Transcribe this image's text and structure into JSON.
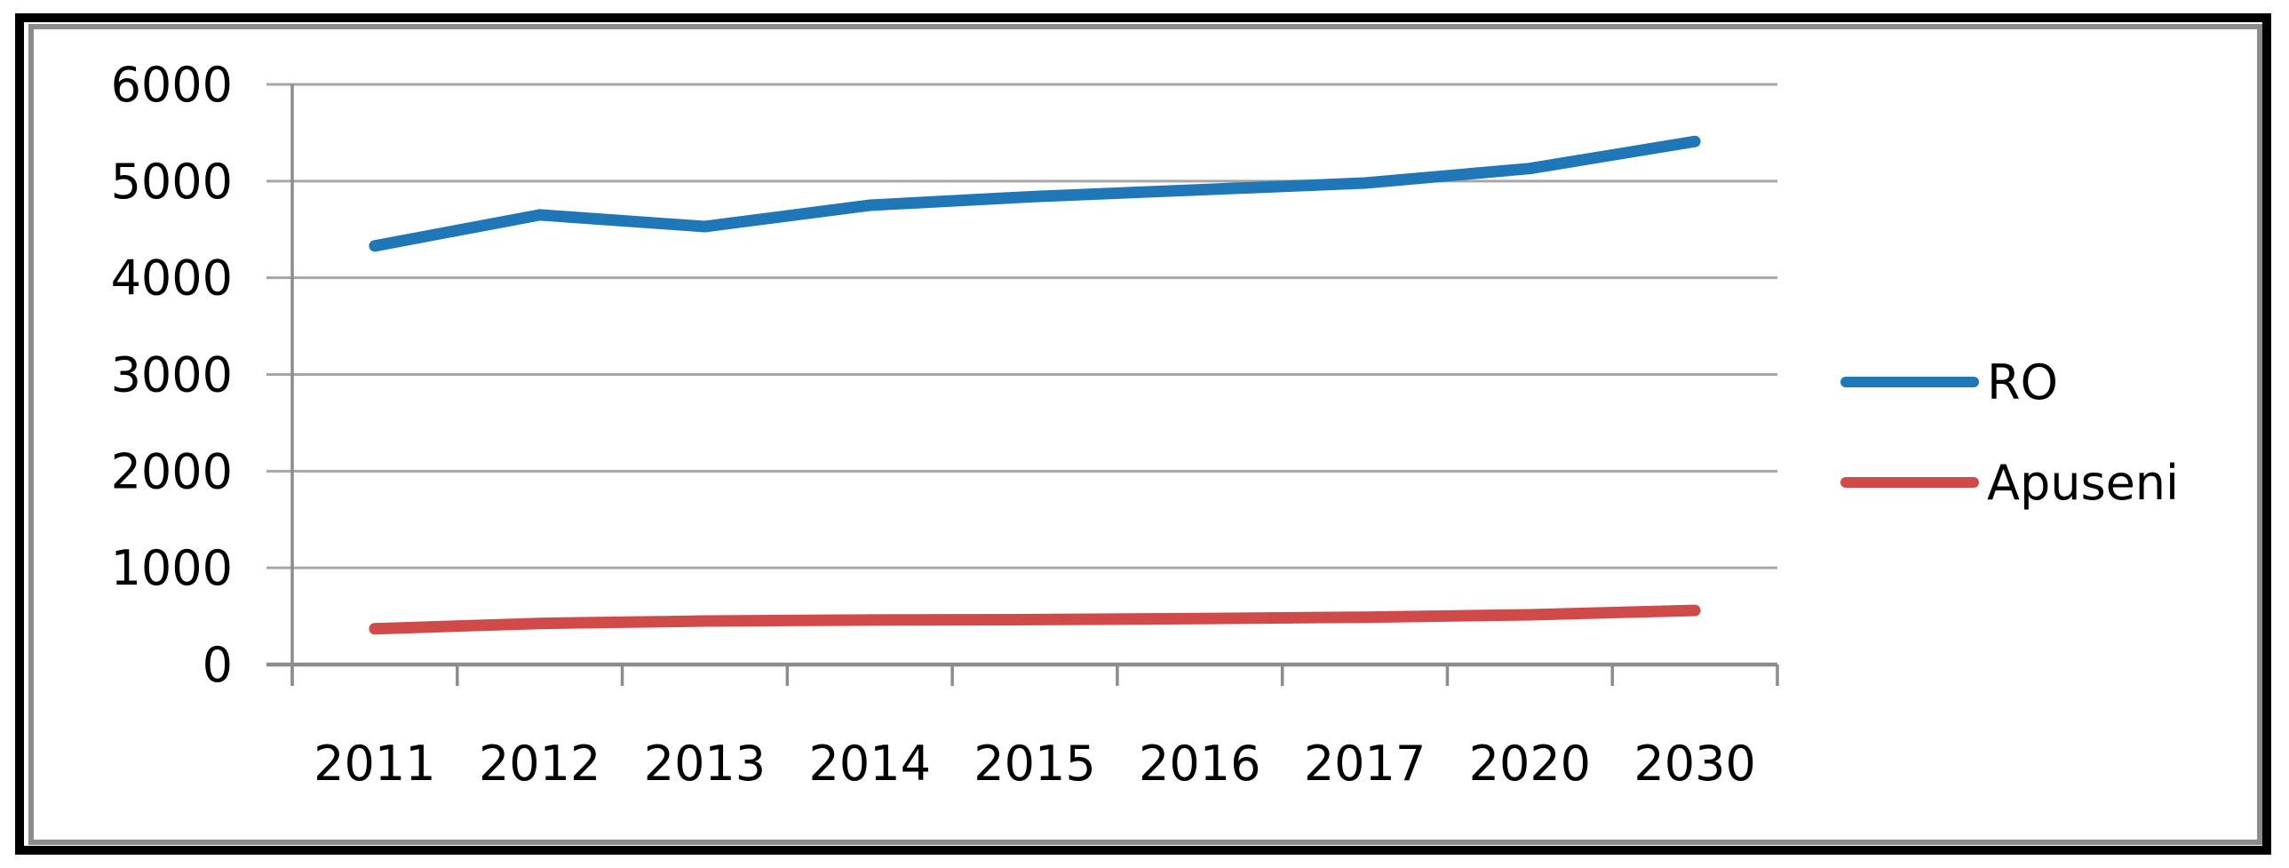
{
  "chart_data": {
    "type": "line",
    "title": "",
    "xlabel": "",
    "ylabel": "",
    "categories": [
      "2011",
      "2012",
      "2013",
      "2014",
      "2015",
      "2016",
      "2017",
      "2020",
      "2030"
    ],
    "series": [
      {
        "name": "RO",
        "color": "#1f77b8",
        "values": [
          4330,
          4650,
          4530,
          4750,
          4840,
          4910,
          4980,
          5130,
          5410
        ]
      },
      {
        "name": "Apuseni",
        "color": "#d04a4a",
        "values": [
          370,
          425,
          450,
          460,
          465,
          475,
          490,
          515,
          560
        ]
      }
    ],
    "ylim": [
      0,
      6000
    ],
    "ytick_step": 1000,
    "yticks": [
      "0",
      "1000",
      "2000",
      "3000",
      "4000",
      "5000",
      "6000"
    ],
    "grid": true,
    "legend_position": "right",
    "colors": {
      "gridline": "#a6a6a6",
      "axis": "#8c8c8c",
      "chart_frame": "#8c8c8c",
      "outer_border": "#000000",
      "background": "#ffffff",
      "text": "#000000"
    }
  }
}
